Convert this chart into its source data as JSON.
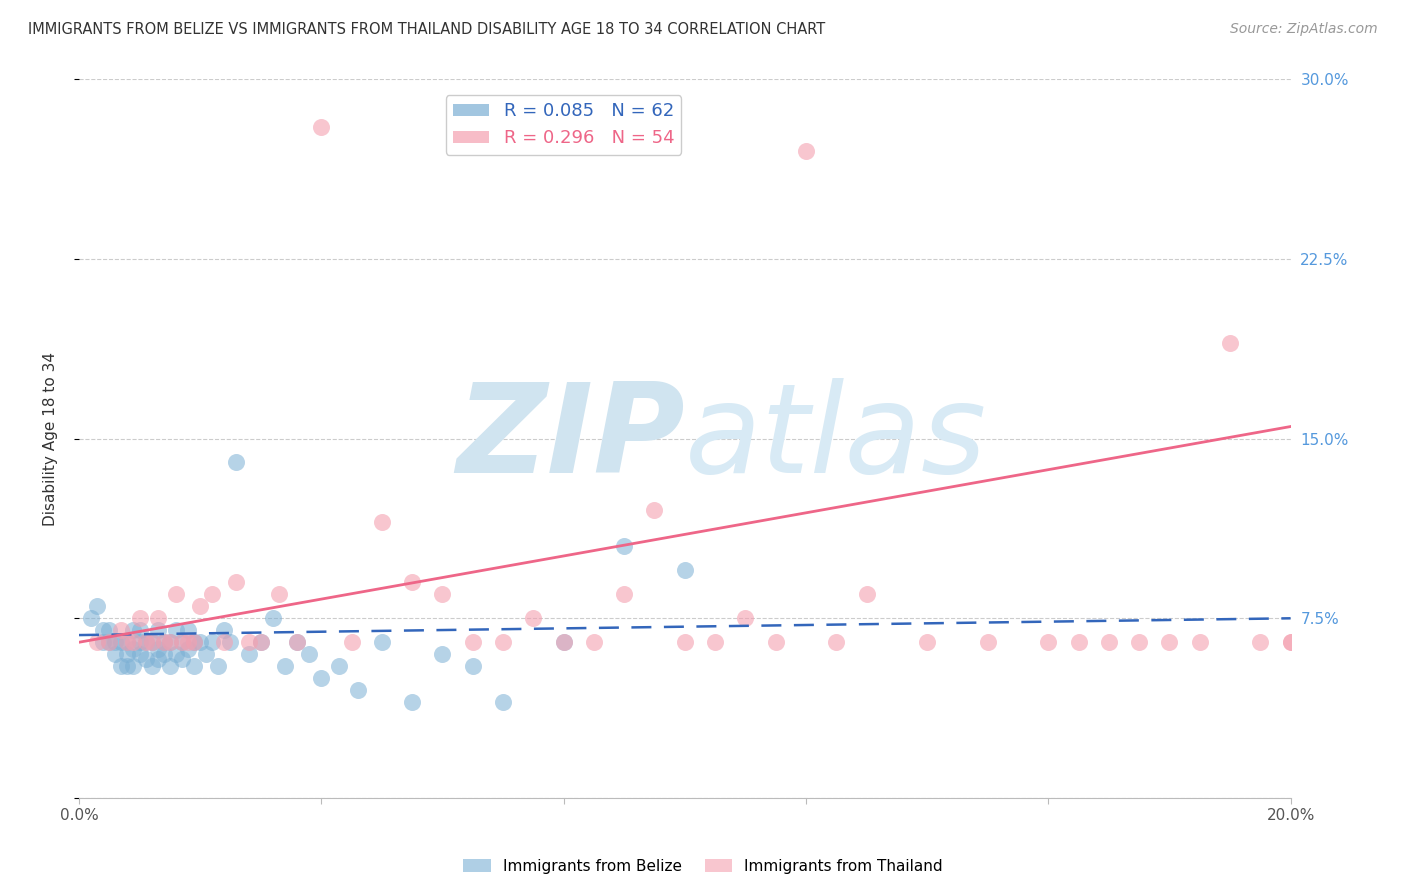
{
  "title": "IMMIGRANTS FROM BELIZE VS IMMIGRANTS FROM THAILAND DISABILITY AGE 18 TO 34 CORRELATION CHART",
  "source": "Source: ZipAtlas.com",
  "ylabel": "Disability Age 18 to 34",
  "xlim": [
    0.0,
    0.2
  ],
  "ylim": [
    0.0,
    0.3
  ],
  "yticks": [
    0.0,
    0.075,
    0.15,
    0.225,
    0.3
  ],
  "xticks": [
    0.0,
    0.04,
    0.08,
    0.12,
    0.16,
    0.2
  ],
  "right_ytick_labels": [
    "",
    "7.5%",
    "15.0%",
    "22.5%",
    "30.0%"
  ],
  "belize_R": 0.085,
  "belize_N": 62,
  "thailand_R": 0.296,
  "thailand_N": 54,
  "belize_color": "#7BAFD4",
  "thailand_color": "#F4A0B0",
  "belize_line_color": "#3366BB",
  "thailand_line_color": "#EE6688",
  "background_color": "#FFFFFF",
  "watermark_color": "#D0E4F0",
  "legend_belize_label": "Immigrants from Belize",
  "legend_thailand_label": "Immigrants from Thailand",
  "belize_x": [
    0.002,
    0.003,
    0.004,
    0.004,
    0.005,
    0.005,
    0.006,
    0.006,
    0.007,
    0.007,
    0.008,
    0.008,
    0.008,
    0.009,
    0.009,
    0.009,
    0.01,
    0.01,
    0.01,
    0.011,
    0.011,
    0.012,
    0.012,
    0.013,
    0.013,
    0.013,
    0.014,
    0.014,
    0.015,
    0.015,
    0.016,
    0.016,
    0.017,
    0.017,
    0.018,
    0.018,
    0.019,
    0.019,
    0.02,
    0.021,
    0.022,
    0.023,
    0.024,
    0.025,
    0.026,
    0.028,
    0.03,
    0.032,
    0.034,
    0.036,
    0.038,
    0.04,
    0.043,
    0.046,
    0.05,
    0.055,
    0.06,
    0.065,
    0.07,
    0.08,
    0.09,
    0.1
  ],
  "belize_y": [
    0.075,
    0.08,
    0.065,
    0.07,
    0.065,
    0.07,
    0.06,
    0.065,
    0.055,
    0.065,
    0.055,
    0.06,
    0.065,
    0.055,
    0.062,
    0.07,
    0.06,
    0.065,
    0.07,
    0.058,
    0.065,
    0.055,
    0.065,
    0.058,
    0.062,
    0.07,
    0.06,
    0.065,
    0.055,
    0.065,
    0.06,
    0.07,
    0.058,
    0.065,
    0.062,
    0.07,
    0.055,
    0.065,
    0.065,
    0.06,
    0.065,
    0.055,
    0.07,
    0.065,
    0.14,
    0.06,
    0.065,
    0.075,
    0.055,
    0.065,
    0.06,
    0.05,
    0.055,
    0.045,
    0.065,
    0.04,
    0.06,
    0.055,
    0.04,
    0.065,
    0.105,
    0.095
  ],
  "thailand_x": [
    0.003,
    0.005,
    0.007,
    0.008,
    0.009,
    0.01,
    0.011,
    0.012,
    0.013,
    0.014,
    0.015,
    0.016,
    0.017,
    0.018,
    0.019,
    0.02,
    0.022,
    0.024,
    0.026,
    0.028,
    0.03,
    0.033,
    0.036,
    0.04,
    0.045,
    0.05,
    0.055,
    0.06,
    0.065,
    0.07,
    0.075,
    0.08,
    0.085,
    0.09,
    0.095,
    0.1,
    0.105,
    0.11,
    0.115,
    0.12,
    0.125,
    0.13,
    0.14,
    0.15,
    0.16,
    0.165,
    0.17,
    0.175,
    0.18,
    0.185,
    0.19,
    0.195,
    0.2,
    0.2
  ],
  "thailand_y": [
    0.065,
    0.065,
    0.07,
    0.065,
    0.065,
    0.075,
    0.065,
    0.065,
    0.075,
    0.065,
    0.065,
    0.085,
    0.065,
    0.065,
    0.065,
    0.08,
    0.085,
    0.065,
    0.09,
    0.065,
    0.065,
    0.085,
    0.065,
    0.28,
    0.065,
    0.115,
    0.09,
    0.085,
    0.065,
    0.065,
    0.075,
    0.065,
    0.065,
    0.085,
    0.12,
    0.065,
    0.065,
    0.075,
    0.065,
    0.27,
    0.065,
    0.085,
    0.065,
    0.065,
    0.065,
    0.065,
    0.065,
    0.065,
    0.065,
    0.065,
    0.19,
    0.065,
    0.065,
    0.065
  ],
  "belize_line_x0": 0.0,
  "belize_line_y0": 0.068,
  "belize_line_x1": 0.2,
  "belize_line_y1": 0.075,
  "thailand_line_x0": 0.0,
  "thailand_line_y0": 0.065,
  "thailand_line_x1": 0.2,
  "thailand_line_y1": 0.155
}
